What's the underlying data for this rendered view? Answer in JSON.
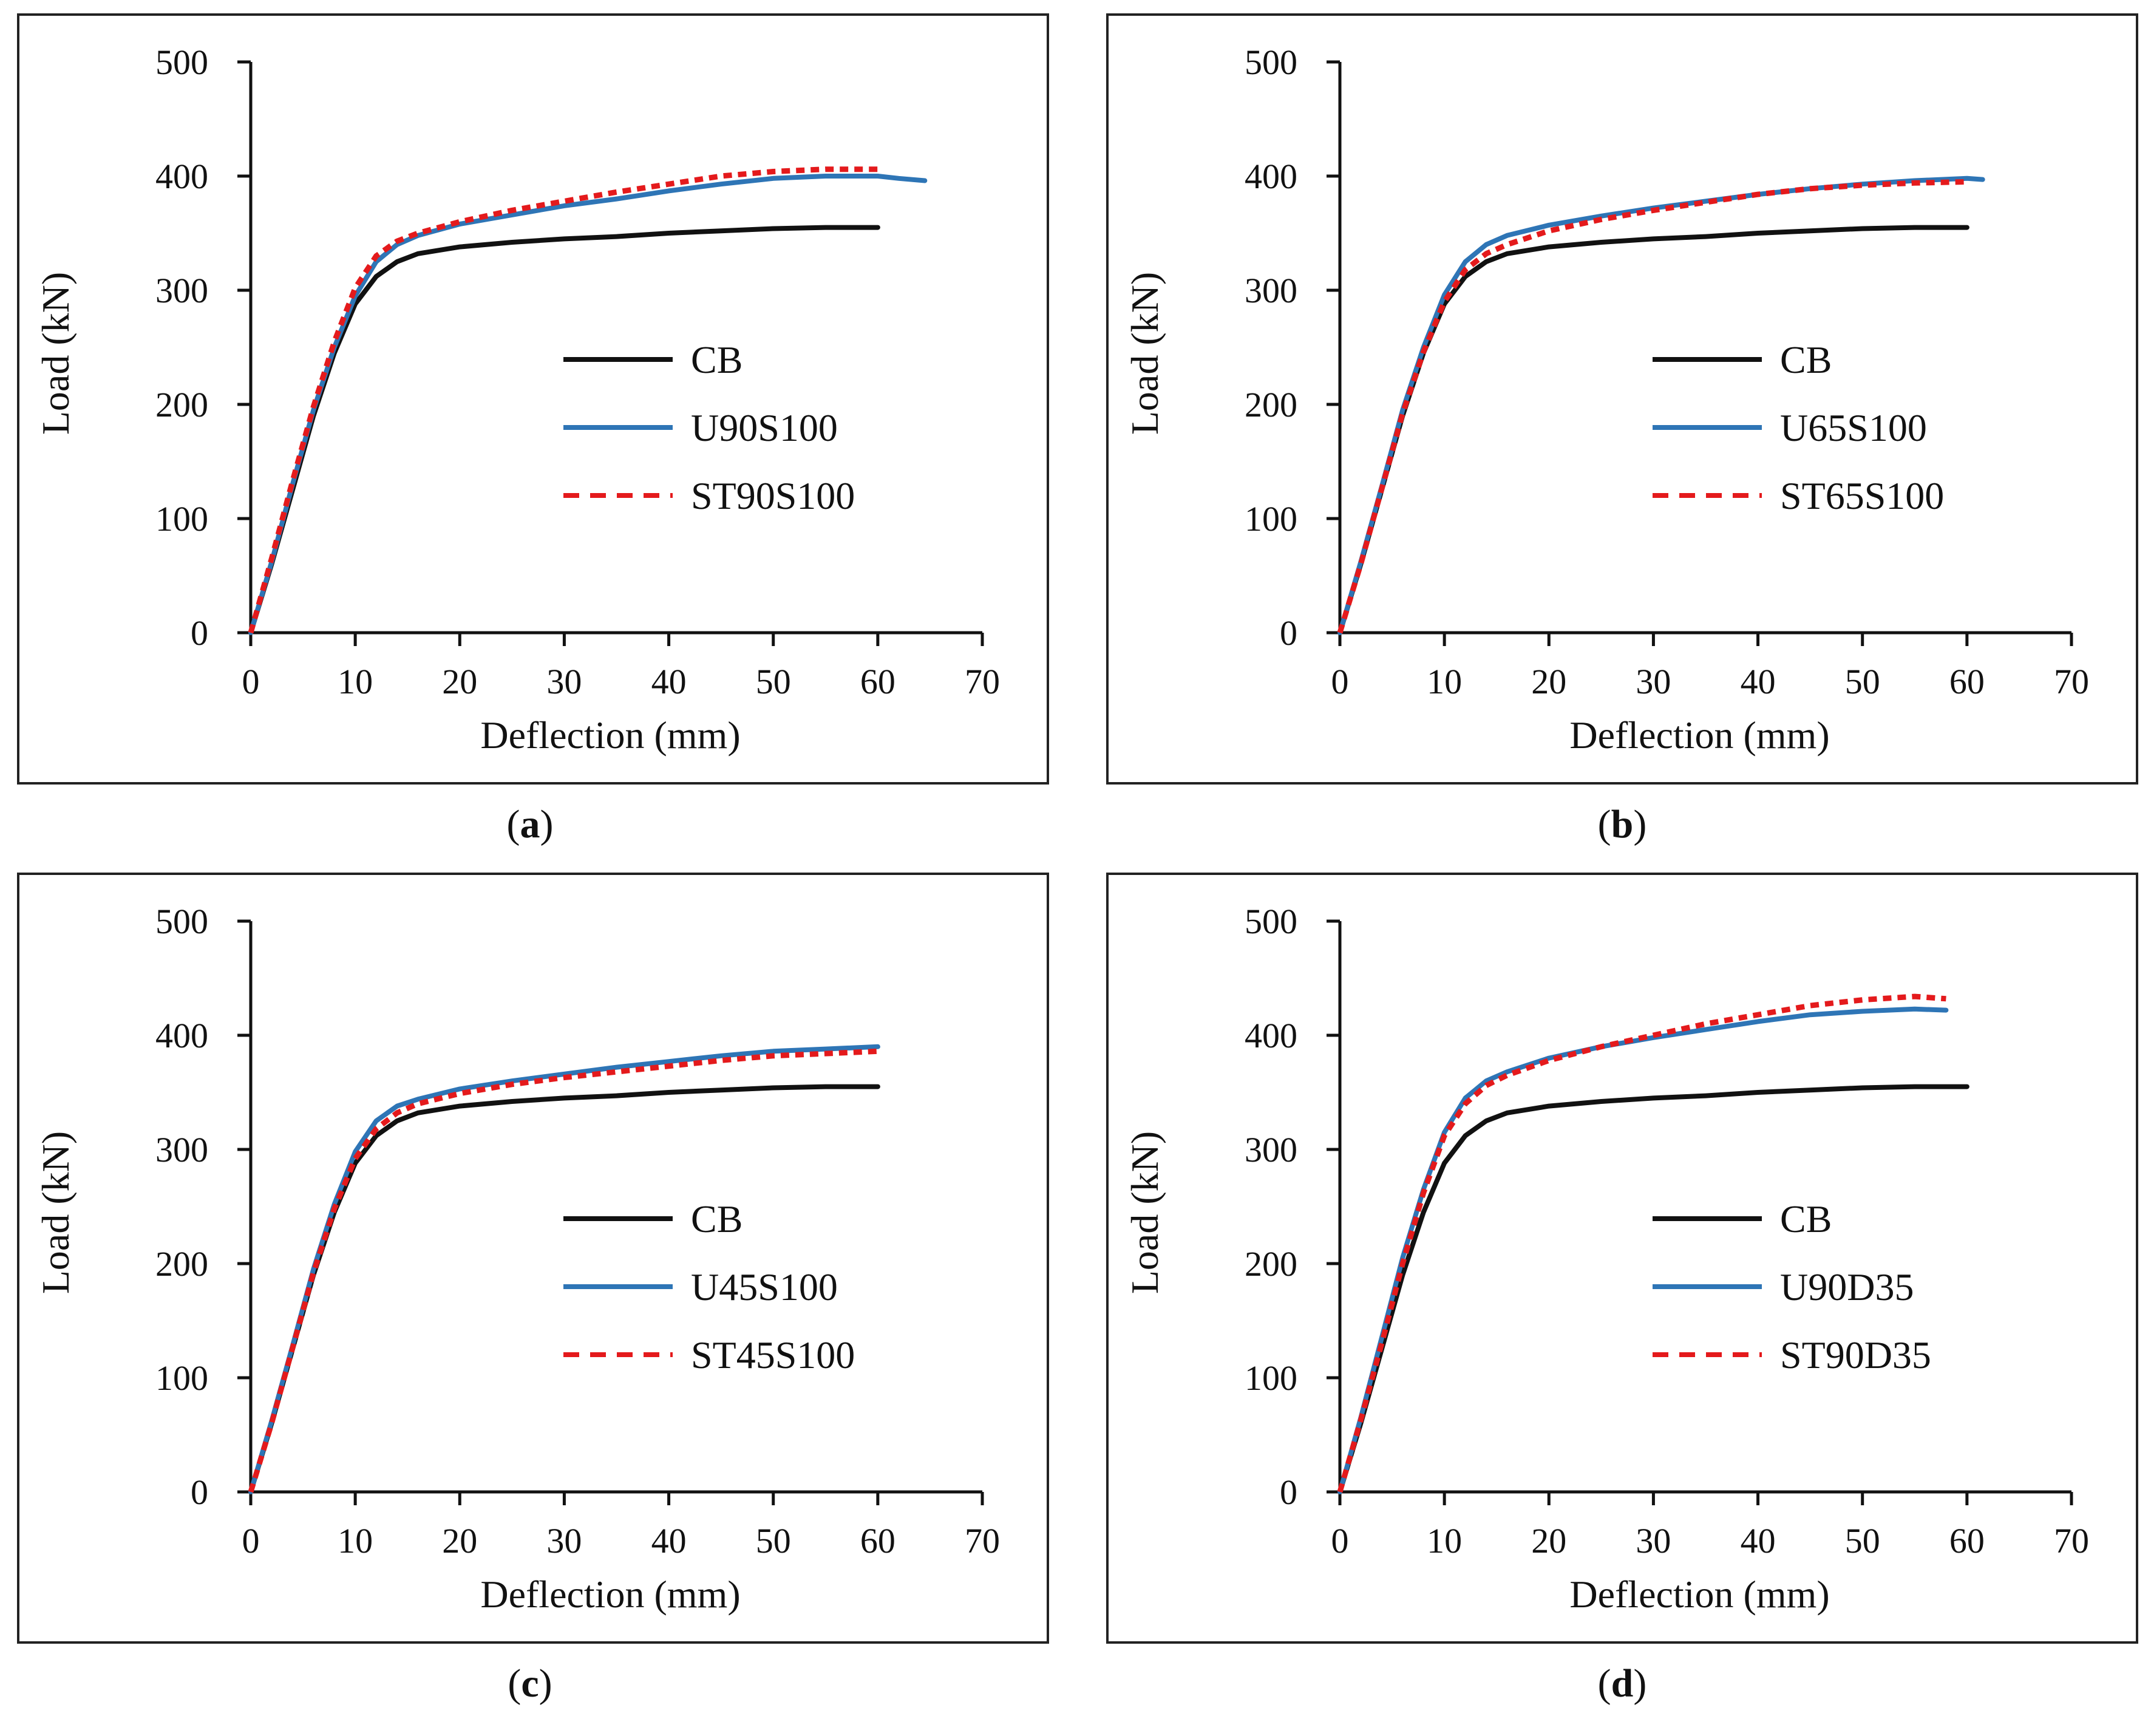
{
  "colors": {
    "CB": "#111111",
    "U": "#2e75b6",
    "ST": "#e41a1c",
    "frame": "#222222"
  },
  "chart_data": [
    {
      "type": "line",
      "panel": "a",
      "xlabel": "Deflection (mm)",
      "ylabel": "Load (kN)",
      "xlim": [
        0,
        70
      ],
      "ylim": [
        0,
        500
      ],
      "xticks": [
        0,
        10,
        20,
        30,
        40,
        50,
        60,
        70
      ],
      "yticks": [
        0,
        100,
        200,
        300,
        400,
        500
      ],
      "legend_position": "center-right",
      "series": [
        {
          "name": "CB",
          "style": "solid",
          "color_key": "CB",
          "x": [
            0,
            2,
            4,
            6,
            8,
            10,
            12,
            14,
            16,
            20,
            25,
            30,
            35,
            40,
            45,
            50,
            55,
            60
          ],
          "y": [
            0,
            60,
            125,
            190,
            245,
            288,
            312,
            325,
            332,
            338,
            342,
            345,
            347,
            350,
            352,
            354,
            355,
            355
          ]
        },
        {
          "name": "U90S100",
          "style": "solid",
          "color_key": "U",
          "x": [
            0,
            2,
            4,
            6,
            8,
            10,
            12,
            14,
            16,
            20,
            25,
            30,
            35,
            40,
            45,
            50,
            55,
            60,
            62,
            64.5
          ],
          "y": [
            0,
            62,
            130,
            195,
            250,
            295,
            325,
            340,
            348,
            358,
            366,
            374,
            380,
            387,
            393,
            398,
            400,
            400,
            398,
            396
          ]
        },
        {
          "name": "ST90S100",
          "style": "dashed",
          "color_key": "ST",
          "x": [
            0,
            2,
            4,
            6,
            8,
            10,
            12,
            14,
            16,
            20,
            25,
            30,
            35,
            40,
            45,
            50,
            55,
            60
          ],
          "y": [
            0,
            65,
            133,
            198,
            255,
            302,
            330,
            343,
            350,
            360,
            370,
            378,
            386,
            393,
            400,
            404,
            406,
            406
          ]
        }
      ]
    },
    {
      "type": "line",
      "panel": "b",
      "xlabel": "Deflection (mm)",
      "ylabel": "Load (kN)",
      "xlim": [
        0,
        70
      ],
      "ylim": [
        0,
        500
      ],
      "xticks": [
        0,
        10,
        20,
        30,
        40,
        50,
        60,
        70
      ],
      "yticks": [
        0,
        100,
        200,
        300,
        400,
        500
      ],
      "legend_position": "center-right",
      "series": [
        {
          "name": "CB",
          "style": "solid",
          "color_key": "CB",
          "x": [
            0,
            2,
            4,
            6,
            8,
            10,
            12,
            14,
            16,
            20,
            25,
            30,
            35,
            40,
            45,
            50,
            55,
            60
          ],
          "y": [
            0,
            60,
            125,
            190,
            245,
            288,
            312,
            325,
            332,
            338,
            342,
            345,
            347,
            350,
            352,
            354,
            355,
            355
          ]
        },
        {
          "name": "U65S100",
          "style": "solid",
          "color_key": "U",
          "x": [
            0,
            2,
            4,
            6,
            8,
            10,
            12,
            14,
            16,
            20,
            25,
            30,
            35,
            40,
            45,
            50,
            55,
            60,
            61.5
          ],
          "y": [
            0,
            62,
            128,
            195,
            250,
            296,
            325,
            340,
            348,
            357,
            365,
            372,
            378,
            384,
            389,
            393,
            396,
            398,
            397
          ]
        },
        {
          "name": "ST65S100",
          "style": "dashed",
          "color_key": "ST",
          "x": [
            0,
            2,
            4,
            6,
            8,
            10,
            12,
            14,
            16,
            20,
            25,
            30,
            35,
            40,
            45,
            50,
            55,
            60
          ],
          "y": [
            0,
            60,
            126,
            192,
            246,
            290,
            318,
            332,
            340,
            352,
            362,
            370,
            377,
            384,
            389,
            392,
            394,
            395
          ]
        }
      ]
    },
    {
      "type": "line",
      "panel": "c",
      "xlabel": "Deflection (mm)",
      "ylabel": "Load (kN)",
      "xlim": [
        0,
        70
      ],
      "ylim": [
        0,
        500
      ],
      "xticks": [
        0,
        10,
        20,
        30,
        40,
        50,
        60,
        70
      ],
      "yticks": [
        0,
        100,
        200,
        300,
        400,
        500
      ],
      "legend_position": "center-right",
      "series": [
        {
          "name": "CB",
          "style": "solid",
          "color_key": "CB",
          "x": [
            0,
            2,
            4,
            6,
            8,
            10,
            12,
            14,
            16,
            20,
            25,
            30,
            35,
            40,
            45,
            50,
            55,
            60
          ],
          "y": [
            0,
            60,
            125,
            190,
            245,
            288,
            312,
            325,
            332,
            338,
            342,
            345,
            347,
            350,
            352,
            354,
            355,
            355
          ]
        },
        {
          "name": "U45S100",
          "style": "solid",
          "color_key": "U",
          "x": [
            0,
            2,
            4,
            6,
            8,
            10,
            12,
            14,
            16,
            20,
            25,
            30,
            35,
            40,
            45,
            50,
            55,
            60
          ],
          "y": [
            0,
            62,
            128,
            195,
            252,
            298,
            325,
            338,
            344,
            353,
            360,
            366,
            372,
            377,
            382,
            386,
            388,
            390
          ]
        },
        {
          "name": "ST45S100",
          "style": "dashed",
          "color_key": "ST",
          "x": [
            0,
            2,
            4,
            6,
            8,
            10,
            12,
            14,
            16,
            20,
            25,
            30,
            35,
            40,
            45,
            50,
            55,
            60
          ],
          "y": [
            0,
            60,
            126,
            192,
            248,
            292,
            318,
            332,
            340,
            349,
            357,
            363,
            368,
            373,
            378,
            382,
            384,
            386
          ]
        }
      ]
    },
    {
      "type": "line",
      "panel": "d",
      "xlabel": "Deflection (mm)",
      "ylabel": "Load (kN)",
      "xlim": [
        0,
        70
      ],
      "ylim": [
        0,
        500
      ],
      "xticks": [
        0,
        10,
        20,
        30,
        40,
        50,
        60,
        70
      ],
      "yticks": [
        0,
        100,
        200,
        300,
        400,
        500
      ],
      "legend_position": "center-right",
      "series": [
        {
          "name": "CB",
          "style": "solid",
          "color_key": "CB",
          "x": [
            0,
            2,
            4,
            6,
            8,
            10,
            12,
            14,
            16,
            20,
            25,
            30,
            35,
            40,
            45,
            50,
            55,
            60
          ],
          "y": [
            0,
            60,
            125,
            190,
            245,
            288,
            312,
            325,
            332,
            338,
            342,
            345,
            347,
            350,
            352,
            354,
            355,
            355
          ]
        },
        {
          "name": "U90D35",
          "style": "solid",
          "color_key": "U",
          "x": [
            0,
            2,
            4,
            6,
            8,
            10,
            12,
            14,
            16,
            20,
            25,
            30,
            35,
            40,
            45,
            50,
            55,
            58
          ],
          "y": [
            0,
            65,
            135,
            205,
            265,
            315,
            345,
            360,
            368,
            380,
            390,
            398,
            405,
            412,
            418,
            421,
            423,
            422
          ]
        },
        {
          "name": "ST90D35",
          "style": "dashed",
          "color_key": "ST",
          "x": [
            0,
            2,
            4,
            6,
            8,
            10,
            12,
            14,
            16,
            20,
            25,
            30,
            35,
            40,
            45,
            50,
            55,
            58
          ],
          "y": [
            0,
            63,
            130,
            200,
            262,
            312,
            340,
            356,
            365,
            378,
            390,
            400,
            410,
            418,
            426,
            431,
            434,
            432
          ]
        }
      ]
    }
  ],
  "captions": [
    {
      "open": "(",
      "letter": "a",
      "close": ")"
    },
    {
      "open": "(",
      "letter": "b",
      "close": ")"
    },
    {
      "open": "(",
      "letter": "c",
      "close": ")"
    },
    {
      "open": "(",
      "letter": "d",
      "close": ")"
    }
  ]
}
